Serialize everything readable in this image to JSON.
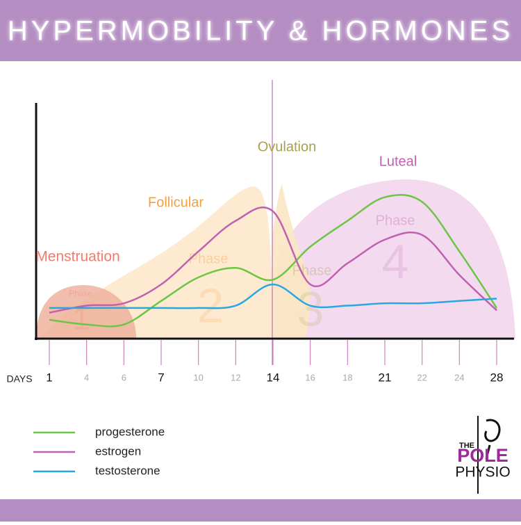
{
  "header": {
    "title": "HYPERMOBILITY & HORMONES"
  },
  "chart_data": {
    "type": "line",
    "x_label": "DAYS",
    "categories": [
      "1",
      "4",
      "6",
      "7",
      "10",
      "12",
      "14",
      "16",
      "18",
      "21",
      "22",
      "24",
      "28"
    ],
    "ylim": [
      0,
      100
    ],
    "series": [
      {
        "name": "progesterone",
        "color": "#6cc644",
        "values": [
          8,
          6,
          6,
          16,
          26,
          30,
          25,
          39,
          50,
          60,
          58,
          37,
          13
        ]
      },
      {
        "name": "estrogen",
        "color": "#c060b0",
        "values": [
          11,
          14,
          15,
          23,
          37,
          50,
          54,
          23,
          32,
          42,
          44,
          27,
          12
        ]
      },
      {
        "name": "testosterone",
        "color": "#29a8e0",
        "values": [
          13,
          13,
          13,
          13,
          13,
          14,
          23,
          14,
          14,
          15,
          15,
          16,
          17
        ]
      }
    ],
    "annotations": [
      {
        "name": "Menstruation",
        "label": "Phase",
        "number": "1",
        "color": "#f07c6c"
      },
      {
        "name": "Follicular",
        "label": "Phase",
        "number": "2",
        "color": "#f4a040"
      },
      {
        "name": "Ovulation",
        "label": "Phase",
        "number": "3",
        "color": "#a8a050"
      },
      {
        "name": "Luteal",
        "label": "Phase",
        "number": "4",
        "color": "#c060b0"
      }
    ]
  },
  "logo": {
    "top": "THE",
    "middle": "POLE",
    "bottom": "PHYSIO"
  }
}
